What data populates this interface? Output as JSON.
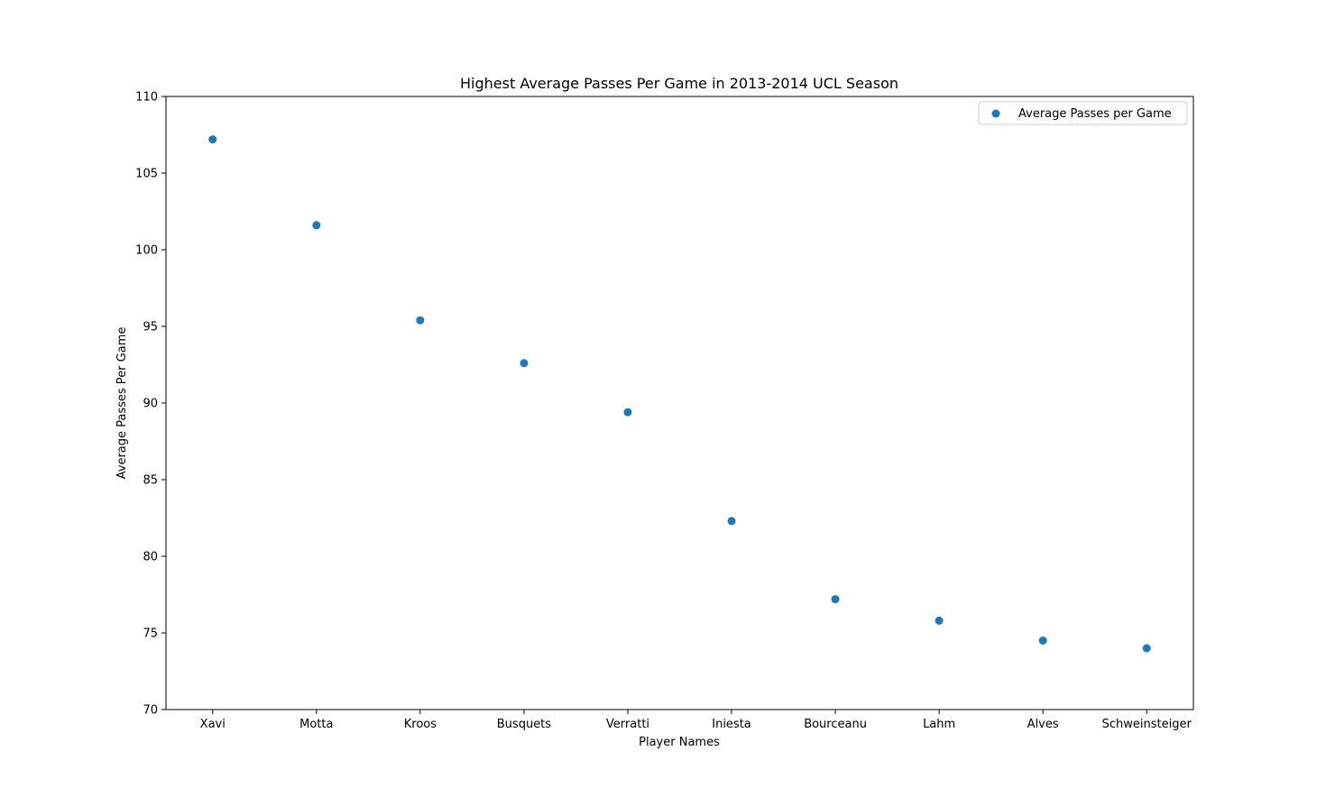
{
  "chart_data": {
    "type": "scatter",
    "title": "Highest Average Passes Per Game in 2013-2014 UCL Season",
    "xlabel": "Player Names",
    "ylabel": "Average Passes Per Game",
    "categories": [
      "Xavi",
      "Motta",
      "Kroos",
      "Busquets",
      "Verratti",
      "Iniesta",
      "Bourceanu",
      "Lahm",
      "Alves",
      "Schweinsteiger"
    ],
    "series": [
      {
        "name": "Average Passes per Game",
        "color": "#1f77b4",
        "values": [
          107.2,
          101.6,
          95.4,
          92.6,
          89.4,
          82.3,
          77.2,
          75.8,
          74.5,
          74.0
        ]
      }
    ],
    "ylim": [
      70,
      110
    ],
    "yticks": [
      "70",
      "75",
      "80",
      "85",
      "90",
      "95",
      "100",
      "105",
      "110"
    ],
    "grid": false,
    "legend_position": "top-right"
  }
}
